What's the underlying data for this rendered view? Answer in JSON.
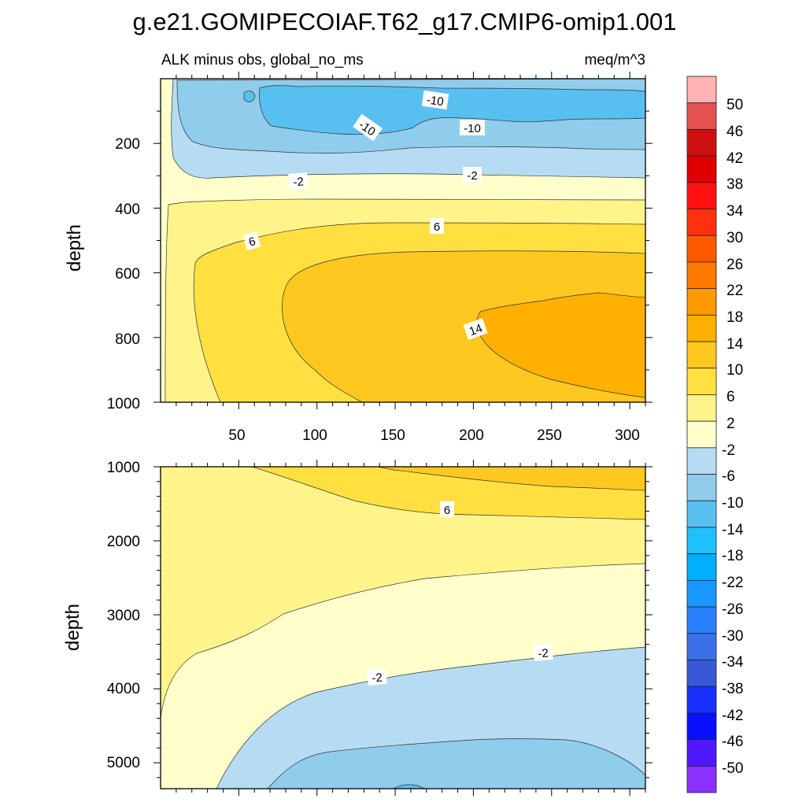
{
  "chart_data": {
    "type": "contour",
    "title": "g.e21.GOMIPECOIAF.T62_g17.CMIP6-omip1.001",
    "subtitle_left": "ALK minus obs, global_no_ms",
    "subtitle_right": "meq/m^3",
    "colorbar": {
      "levels": [
        "50",
        "46",
        "42",
        "38",
        "34",
        "30",
        "26",
        "22",
        "18",
        "14",
        "10",
        "6",
        "2",
        "-2",
        "-6",
        "-10",
        "-14",
        "-18",
        "-22",
        "-26",
        "-30",
        "-34",
        "-38",
        "-42",
        "-46",
        "-50"
      ],
      "colors": [
        "#ffb3b5",
        "#e55050",
        "#d01010",
        "#e00000",
        "#ff1010",
        "#ff3010",
        "#ff5a00",
        "#ff7a00",
        "#ff9a00",
        "#ffb000",
        "#ffc820",
        "#ffe040",
        "#fff48a",
        "#ffffcc",
        "#b5dcf2",
        "#90ccec",
        "#58c0f0",
        "#20c0ff",
        "#00b0ff",
        "#1898ff",
        "#2a80ff",
        "#3a70e8",
        "#3858d8",
        "#1a30ff",
        "#0a10ff",
        "#5018ff",
        "#8a30ff"
      ]
    },
    "panels": [
      {
        "ylabel": "depth",
        "y_range": [
          0,
          1000
        ],
        "y_ticks": [
          "200",
          "400",
          "600",
          "800",
          "1000"
        ],
        "x_range": [
          0,
          310
        ],
        "x_ticks": [
          "50",
          "100",
          "150",
          "200",
          "250",
          "300"
        ],
        "contour_labels": [
          "-10",
          "-10",
          "-10",
          "-2",
          "-2",
          "6",
          "6",
          "14"
        ]
      },
      {
        "ylabel": "depth",
        "y_range": [
          1000,
          5350
        ],
        "y_ticks": [
          "1000",
          "2000",
          "3000",
          "4000",
          "5000"
        ],
        "x_range": [
          0,
          310
        ],
        "contour_labels": [
          "6",
          "-2",
          "-2"
        ]
      }
    ]
  }
}
